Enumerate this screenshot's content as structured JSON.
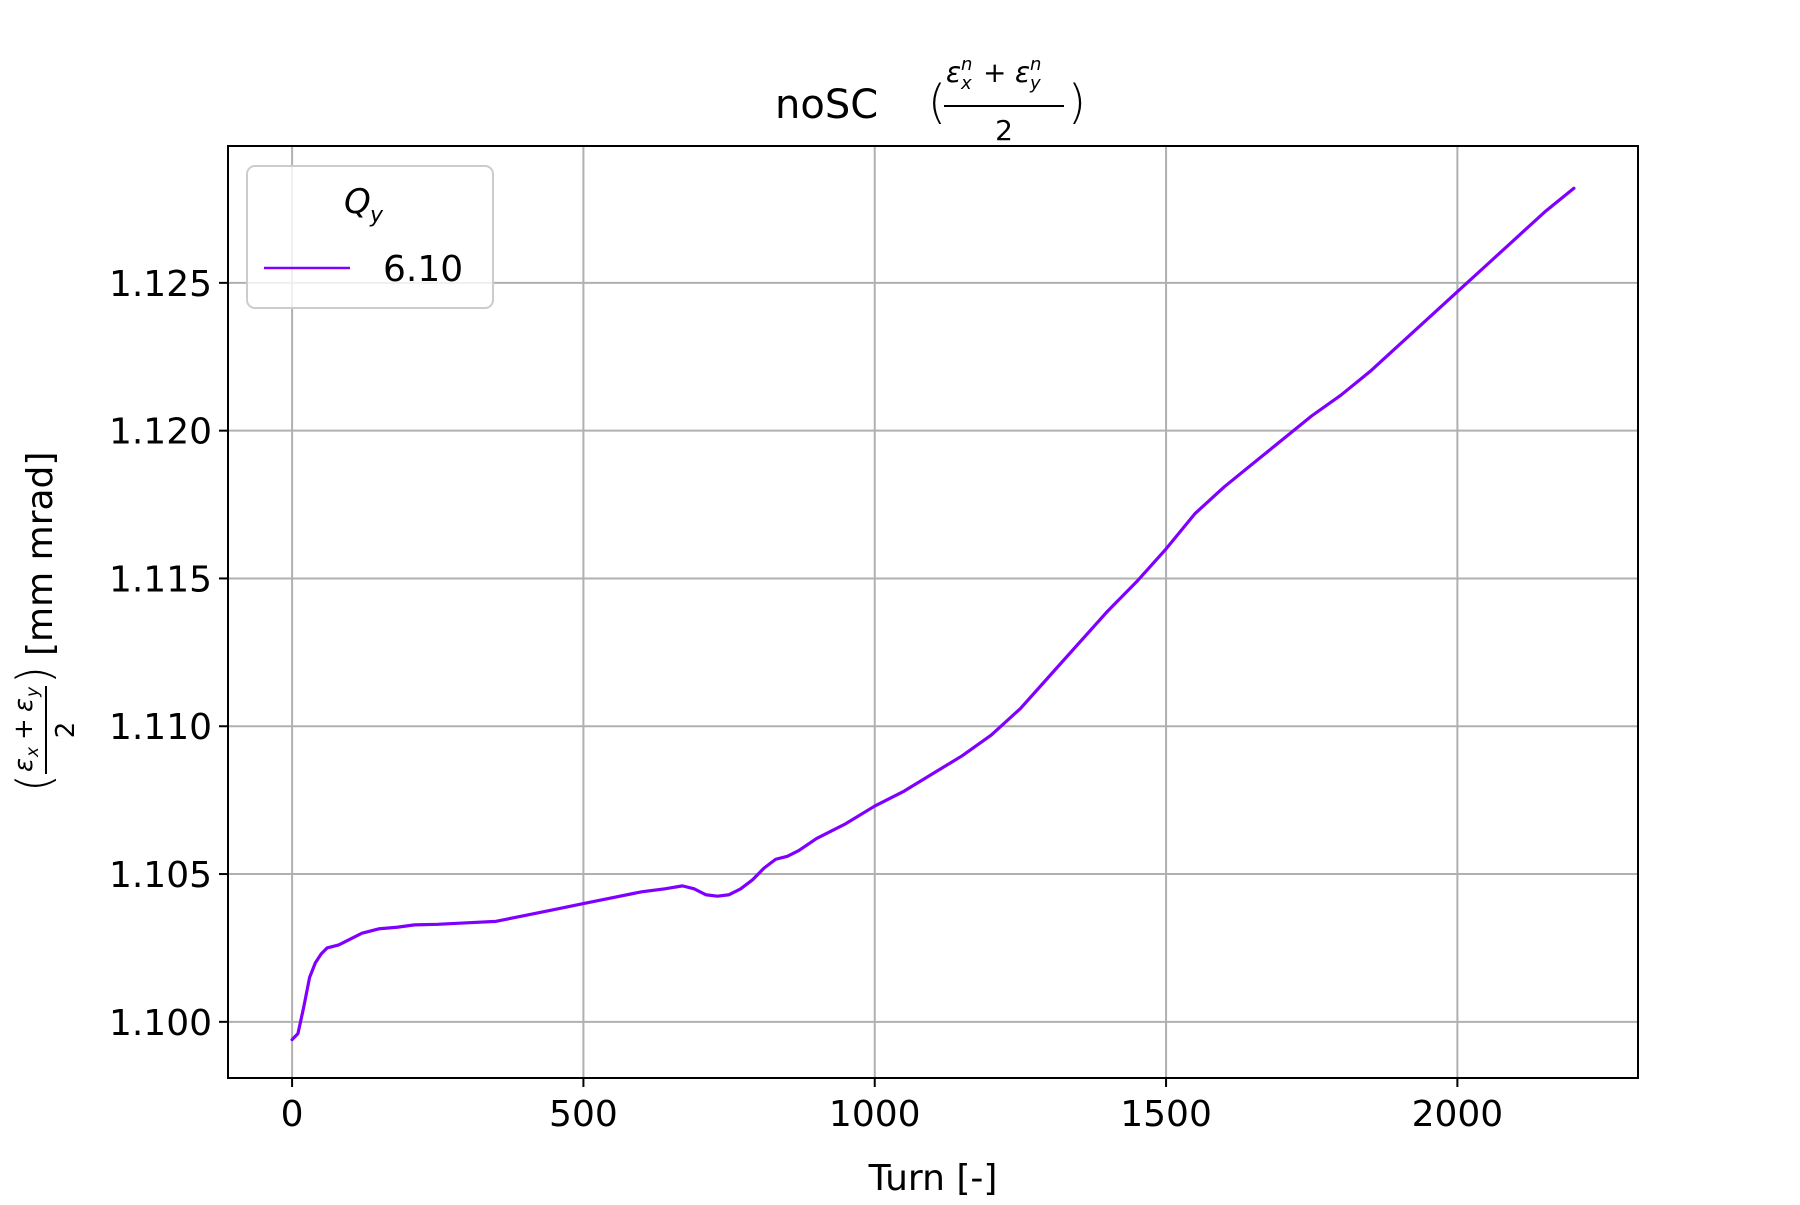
{
  "chart_data": {
    "type": "line",
    "title": "noSC",
    "title_math": {
      "numerator_left": "ε",
      "numerator_left_sub": "x",
      "numerator_left_sup": "n",
      "plus": "+",
      "numerator_right": "ε",
      "numerator_right_sub": "y",
      "numerator_right_sup": "n",
      "denominator": "2"
    },
    "xlabel": "Turn [-]",
    "ylabel": "[mm mrad]",
    "ylabel_math": {
      "numerator": "ε",
      "sub_x": "x",
      "sub_y": "y",
      "plus": "+",
      "denominator": "2"
    },
    "xlim": [
      -110,
      2310
    ],
    "ylim": [
      1.0981,
      1.12963
    ],
    "xticks": [
      0,
      500,
      1000,
      1500,
      2000
    ],
    "xtick_labels": [
      "0",
      "500",
      "1000",
      "1500",
      "2000"
    ],
    "yticks": [
      1.1,
      1.105,
      1.11,
      1.115,
      1.12,
      1.125
    ],
    "ytick_labels": [
      "1.100",
      "1.105",
      "1.110",
      "1.115",
      "1.120",
      "1.125"
    ],
    "grid": true,
    "legend": {
      "title": "Q",
      "title_sub": "y",
      "placement": "upper-left",
      "entries": [
        "6.10"
      ]
    },
    "series": [
      {
        "name": "6.10",
        "color": "#7f00ff",
        "x": [
          0,
          10,
          20,
          30,
          40,
          50,
          60,
          70,
          80,
          100,
          120,
          150,
          180,
          210,
          250,
          300,
          350,
          400,
          450,
          500,
          550,
          600,
          640,
          670,
          690,
          710,
          730,
          750,
          770,
          790,
          810,
          830,
          850,
          870,
          900,
          950,
          1000,
          1050,
          1100,
          1150,
          1200,
          1250,
          1300,
          1350,
          1400,
          1450,
          1500,
          1550,
          1600,
          1650,
          1700,
          1750,
          1800,
          1850,
          1900,
          1950,
          2000,
          2050,
          2100,
          2150,
          2200
        ],
        "y": [
          1.0994,
          1.0996,
          1.1005,
          1.1015,
          1.102,
          1.1023,
          1.1025,
          1.10255,
          1.1026,
          1.1028,
          1.103,
          1.10315,
          1.1032,
          1.10328,
          1.1033,
          1.10335,
          1.1034,
          1.1036,
          1.1038,
          1.104,
          1.1042,
          1.1044,
          1.1045,
          1.1046,
          1.1045,
          1.1043,
          1.10425,
          1.1043,
          1.1045,
          1.1048,
          1.1052,
          1.1055,
          1.1056,
          1.1058,
          1.1062,
          1.1067,
          1.1073,
          1.1078,
          1.1084,
          1.109,
          1.1097,
          1.1106,
          1.1117,
          1.1128,
          1.1139,
          1.1149,
          1.116,
          1.1172,
          1.1181,
          1.1189,
          1.1197,
          1.1205,
          1.1212,
          1.122,
          1.1229,
          1.1238,
          1.1247,
          1.1256,
          1.1265,
          1.1274,
          1.1282
        ]
      }
    ]
  }
}
